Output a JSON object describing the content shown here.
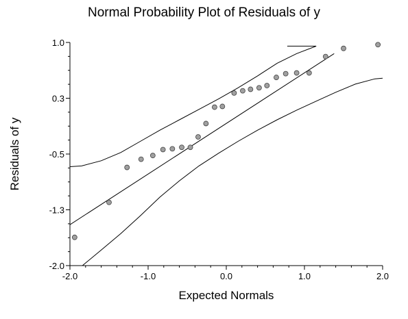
{
  "chart_data": {
    "type": "scatter",
    "title": "Normal Probability Plot of Residuals of y",
    "xlabel": "Expected Normals",
    "ylabel": "Residuals of y",
    "xlim": [
      -2.0,
      2.0
    ],
    "ylim": [
      -2.0,
      1.0
    ],
    "x_ticks": [
      -2.0,
      -1.0,
      0.0,
      1.0,
      2.0
    ],
    "x_tick_labels": [
      "-2.0",
      "-1.0",
      "0.0",
      "1.0",
      "2.0"
    ],
    "y_ticks": [
      1.0,
      0.3,
      -0.5,
      -1.3,
      -2.0
    ],
    "y_tick_labels": [
      "1.0",
      "0.3",
      "-0.5",
      "-1.3",
      "-2.0"
    ],
    "grid": false,
    "colors": {
      "point_fill": "#a0a0a0",
      "point_stroke": "#404040",
      "line": "#000000"
    },
    "points": [
      {
        "x": -1.94,
        "y": -1.62
      },
      {
        "x": -1.5,
        "y": -1.15
      },
      {
        "x": -1.27,
        "y": -0.68
      },
      {
        "x": -1.09,
        "y": -0.57
      },
      {
        "x": -0.94,
        "y": -0.52
      },
      {
        "x": -0.81,
        "y": -0.44
      },
      {
        "x": -0.69,
        "y": -0.43
      },
      {
        "x": -0.57,
        "y": -0.41
      },
      {
        "x": -0.46,
        "y": -0.41
      },
      {
        "x": -0.36,
        "y": -0.27
      },
      {
        "x": -0.26,
        "y": -0.09
      },
      {
        "x": -0.15,
        "y": 0.13
      },
      {
        "x": -0.05,
        "y": 0.14
      },
      {
        "x": 0.1,
        "y": 0.32
      },
      {
        "x": 0.21,
        "y": 0.35
      },
      {
        "x": 0.31,
        "y": 0.37
      },
      {
        "x": 0.42,
        "y": 0.39
      },
      {
        "x": 0.52,
        "y": 0.42
      },
      {
        "x": 0.64,
        "y": 0.53
      },
      {
        "x": 0.76,
        "y": 0.58
      },
      {
        "x": 0.9,
        "y": 0.59
      },
      {
        "x": 1.06,
        "y": 0.59
      },
      {
        "x": 1.27,
        "y": 0.81
      },
      {
        "x": 1.5,
        "y": 0.92
      },
      {
        "x": 1.94,
        "y": 0.97
      }
    ],
    "reference_line": {
      "x": [
        -2.0,
        1.38
      ],
      "y": [
        -1.45,
        0.85
      ]
    },
    "upper_band": {
      "x": [
        -2.0,
        -1.85,
        -1.6,
        -1.35,
        -1.1,
        -0.85,
        -0.6,
        -0.35,
        -0.1,
        0.15,
        0.4,
        0.65,
        0.9,
        1.15,
        0.78
      ],
      "y": [
        -0.67,
        -0.66,
        -0.59,
        -0.48,
        -0.33,
        -0.18,
        -0.04,
        0.1,
        0.24,
        0.39,
        0.55,
        0.72,
        0.85,
        0.95,
        0.95
      ]
    },
    "lower_band": {
      "x": [
        -1.84,
        -1.6,
        -1.35,
        -1.1,
        -0.85,
        -0.6,
        -0.35,
        -0.1,
        0.15,
        0.4,
        0.65,
        0.9,
        1.15,
        1.4,
        1.65,
        1.9,
        2.0
      ],
      "y": [
        -2.0,
        -1.79,
        -1.57,
        -1.33,
        -1.08,
        -0.86,
        -0.66,
        -0.49,
        -0.33,
        -0.18,
        -0.04,
        0.09,
        0.21,
        0.33,
        0.44,
        0.51,
        0.52
      ]
    }
  }
}
